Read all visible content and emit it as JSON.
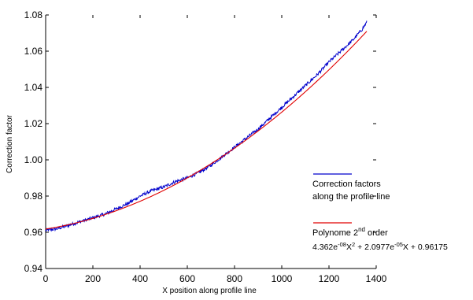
{
  "chart_data": {
    "type": "line",
    "xlabel": "X position along profile line",
    "ylabel": "Correction factor",
    "xlim": [
      0,
      1400
    ],
    "ylim": [
      0.94,
      1.08
    ],
    "xticks": [
      "0",
      "200",
      "400",
      "600",
      "800",
      "1000",
      "1200",
      "1400"
    ],
    "yticks": [
      "0.94",
      "0.96",
      "0.98",
      "1.00",
      "1.02",
      "1.04",
      "1.06",
      "1.08"
    ],
    "grid": false,
    "legend_position": "right",
    "series": [
      {
        "name": "Correction factors along the profile line",
        "color": "#0000cc",
        "style": "noisy measured line",
        "x": [
          0,
          50,
          100,
          150,
          200,
          250,
          300,
          350,
          400,
          450,
          500,
          550,
          600,
          650,
          700,
          750,
          800,
          850,
          900,
          950,
          1000,
          1050,
          1100,
          1150,
          1200,
          1250,
          1300,
          1340,
          1360
        ],
        "y": [
          0.961,
          0.962,
          0.964,
          0.966,
          0.968,
          0.97,
          0.973,
          0.976,
          0.98,
          0.983,
          0.985,
          0.988,
          0.99,
          0.993,
          0.997,
          1.002,
          1.007,
          1.012,
          1.017,
          1.023,
          1.029,
          1.035,
          1.041,
          1.047,
          1.054,
          1.06,
          1.066,
          1.072,
          1.076
        ]
      },
      {
        "name": "Polynome 2nd order",
        "color": "#e00000",
        "style": "fit line",
        "equation": {
          "a": 4.362e-08,
          "b": 2.0977e-05,
          "c": 0.96175
        },
        "x_range": [
          0,
          1360
        ]
      }
    ],
    "legend": {
      "measured": {
        "line1": "Correction factors",
        "line2": "along the profile line"
      },
      "fit": {
        "prefix": "Polynome 2",
        "sup": "nd",
        "suffix": " order"
      },
      "equation_parts": [
        "4.362e",
        "-08",
        "X",
        "2",
        " + 2.0977e",
        "-05",
        "X + 0.96175"
      ]
    }
  }
}
